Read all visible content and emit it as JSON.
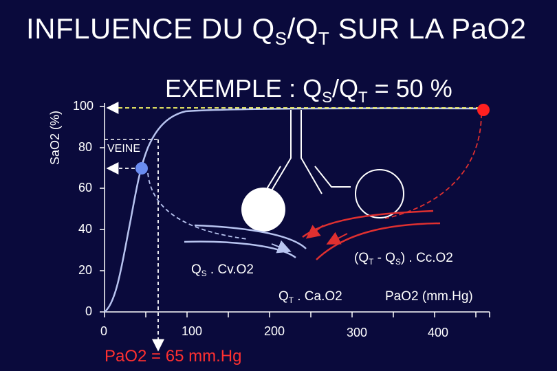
{
  "title": {
    "prefix": "INFLUENCE DU Q",
    "sub1": "S",
    "mid": "/Q",
    "sub2": "T",
    "suffix": " SUR LA PaO2"
  },
  "example": {
    "prefix": "EXEMPLE : Q",
    "sub1": "S",
    "mid": "/Q",
    "sub2": "T",
    "suffix": " = 50 %"
  },
  "y_axis": {
    "label": "SaO2 (%)",
    "ticks": [
      "100",
      "80",
      "60",
      "40",
      "20",
      "0"
    ]
  },
  "x_axis": {
    "label": "PaO2 (mm.Hg)",
    "ticks": [
      "0",
      "100",
      "200",
      "300",
      "400"
    ]
  },
  "labels": {
    "veine": "VEINE",
    "qs_cv_prefix": "Q",
    "qs_cv_sub": "S",
    "qs_cv_suffix": " . Cv.O2",
    "qt_ca_prefix": "Q",
    "qt_ca_sub": "T",
    "qt_ca_suffix": " . Ca.O2",
    "qt_qs_a": "(Q",
    "qt_qs_sub1": "T",
    "qt_qs_b": " - Q",
    "qt_qs_sub2": "S",
    "qt_qs_c": ") . Cc.O2",
    "pao2_result": "PaO2 = 65 mm.Hg"
  },
  "colors": {
    "background": "#0a0a3c",
    "venous": "#b8c4f0",
    "venous_point": "#6a8cf0",
    "arterial": "#e03030",
    "capillary_point": "#ff2020",
    "result": "#ff3030",
    "dashed_white": "#ffffff"
  }
}
